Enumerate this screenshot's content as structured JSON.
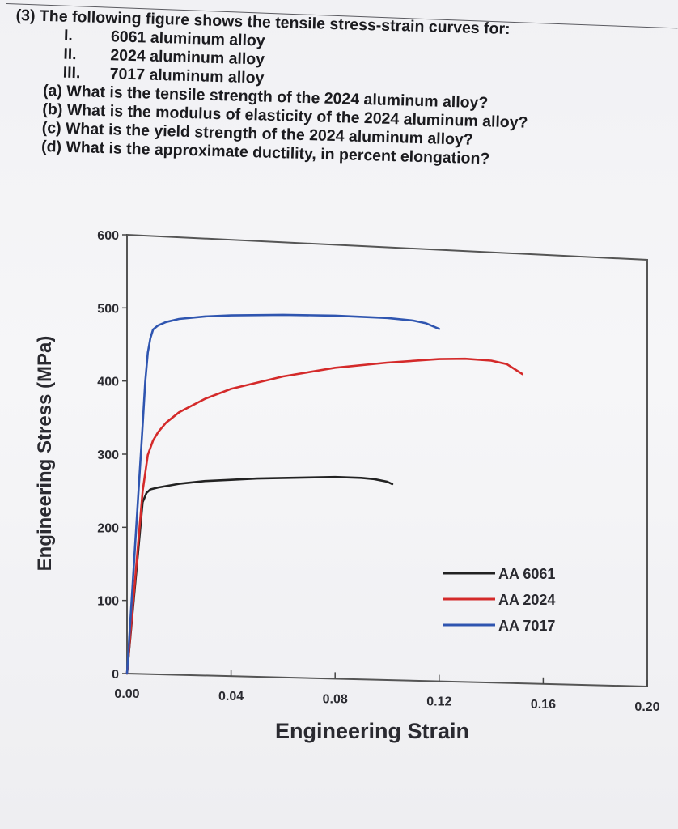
{
  "question": {
    "intro": "(3) The following figure shows the tensile stress-strain curves for:",
    "items": [
      {
        "num": "I.",
        "text": "6061 aluminum alloy"
      },
      {
        "num": "II.",
        "text": "2024 aluminum alloy"
      },
      {
        "num": "III.",
        "text": "7017 aluminum alloy"
      }
    ],
    "parts": [
      "(a) What is the tensile strength of the 2024 aluminum alloy?",
      "(b) What is the modulus of elasticity of the 2024 aluminum alloy?",
      "(c) What is the yield strength of the 2024 aluminum alloy?",
      "(d) What is the approximate ductility, in percent elongation?"
    ]
  },
  "chart_data": {
    "type": "line",
    "title": "",
    "xlabel": "Engineering Strain",
    "ylabel": "Engineering Stress (MPa)",
    "xlim": [
      0,
      0.2
    ],
    "ylim": [
      0,
      600
    ],
    "x_ticks": [
      "0.00",
      "0.04",
      "0.08",
      "0.12",
      "0.16",
      "0.20"
    ],
    "y_ticks": [
      "0",
      "100",
      "200",
      "300",
      "400",
      "500",
      "600"
    ],
    "grid": false,
    "legend_position": "bottom-right",
    "series": [
      {
        "name": "AA 6061",
        "color": "#222222",
        "x": [
          0,
          0.006,
          0.0075,
          0.009,
          0.012,
          0.02,
          0.03,
          0.04,
          0.05,
          0.06,
          0.07,
          0.08,
          0.09,
          0.095,
          0.1,
          0.102
        ],
        "y": [
          0,
          235,
          248,
          253,
          256,
          262,
          267,
          270,
          273,
          275,
          277,
          279,
          279,
          278,
          275,
          272
        ]
      },
      {
        "name": "AA 2024",
        "color": "#d42a2a",
        "x": [
          0,
          0.006,
          0.008,
          0.01,
          0.012,
          0.015,
          0.02,
          0.03,
          0.04,
          0.06,
          0.08,
          0.1,
          0.12,
          0.13,
          0.14,
          0.146,
          0.152
        ],
        "y": [
          0,
          250,
          300,
          320,
          332,
          345,
          360,
          380,
          395,
          415,
          430,
          440,
          448,
          450,
          449,
          445,
          432
        ]
      },
      {
        "name": "AA 7017",
        "color": "#2f55b0",
        "x": [
          0,
          0.006,
          0.007,
          0.008,
          0.009,
          0.01,
          0.012,
          0.015,
          0.02,
          0.03,
          0.04,
          0.06,
          0.08,
          0.1,
          0.11,
          0.115,
          0.12
        ],
        "y": [
          0,
          340,
          400,
          440,
          460,
          472,
          478,
          483,
          488,
          493,
          496,
          500,
          502,
          502,
          500,
          497,
          490
        ]
      }
    ]
  }
}
